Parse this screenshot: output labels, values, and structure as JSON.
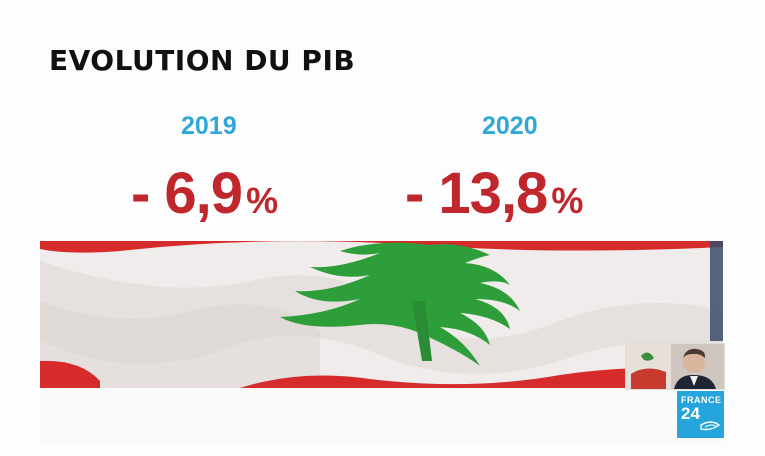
{
  "title": "EVOLUTION DU PIB",
  "stats": [
    {
      "year": "2019",
      "value": "- 6,9",
      "unit": "%"
    },
    {
      "year": "2020",
      "value": "- 13,8",
      "unit": "%"
    }
  ],
  "logo": {
    "line1": "FRANCE",
    "line2": "24"
  },
  "colors": {
    "title": "#111111",
    "year": "#2fa8d8",
    "value": "#c0272d",
    "logo_bg": "#26a4dc",
    "flag_red": "#d62b2b",
    "cedar_green": "#2e9e3a"
  },
  "images": {
    "main": "lebanon-flag-photo",
    "inset": "person-portrait-thumbnail"
  }
}
